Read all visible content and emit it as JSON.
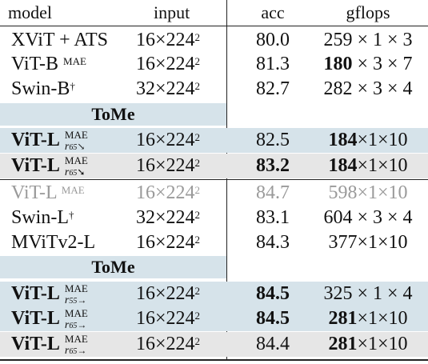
{
  "header": {
    "model": "model",
    "input": "input",
    "acc": "acc",
    "gflops": "gflops"
  },
  "section1": [
    {
      "model": "XViT + ATS",
      "input": "16×224",
      "input_exp": "2",
      "acc": "80.0",
      "gf_a": "259",
      "gf_rest": " × 1 × 3"
    },
    {
      "model": "ViT-B",
      "model_sup": "MAE",
      "input": "16×224",
      "input_exp": "2",
      "acc": "81.3",
      "gf_a": "180",
      "gf_rest": " × 3 × 7"
    },
    {
      "model": "Swin-B",
      "model_sup": "†",
      "input": "32×224",
      "input_exp": "2",
      "acc": "82.7",
      "gf_a": "282",
      "gf_rest": " × 3 × 4"
    }
  ],
  "tome_label_1": "ToMe",
  "tome1": [
    {
      "model": "ViT-L",
      "sup_top": "MAE",
      "sub_bot": "r",
      "sub_num": "65",
      "arrow": "↘",
      "input": "16×224",
      "input_exp": "2",
      "acc": "82.5",
      "gf_a": "184",
      "gf_rest": "×1×10"
    },
    {
      "model": "ViT-L",
      "sup_top": "MAE",
      "sub_bot": "r",
      "sub_num": "65",
      "arrow": "➘",
      "input": "16×224",
      "input_exp": "2",
      "acc": "83.2",
      "gf_a": "184",
      "gf_rest": "×1×10"
    }
  ],
  "section2": [
    {
      "model": "ViT-L",
      "model_sup": "MAE",
      "input": "16×224",
      "input_exp": "2",
      "acc": "84.7",
      "gf_a": "598",
      "gf_rest": "×1×10"
    },
    {
      "model": "Swin-L",
      "model_sup": "†",
      "input": "32×224",
      "input_exp": "2",
      "acc": "83.1",
      "gf_a": "604",
      "gf_rest": " × 3 × 4"
    },
    {
      "model": "MViTv2-L",
      "input": "16×224",
      "input_exp": "2",
      "acc": "84.3",
      "gf_a": "377",
      "gf_rest": "×1×10"
    }
  ],
  "tome_label_2": "ToMe",
  "tome2": [
    {
      "model": "ViT-L",
      "sup_top": "MAE",
      "sub_bot": "r",
      "sub_num": "55",
      "arrow": "→",
      "input": "16×224",
      "input_exp": "2",
      "acc": "84.5",
      "gf_a": "325",
      "gf_rest": " × 1 × 4"
    },
    {
      "model": "ViT-L",
      "sup_top": "MAE",
      "sub_bot": "r",
      "sub_num": "65",
      "arrow": "→",
      "input": "16×224",
      "input_exp": "2",
      "acc": "84.5",
      "gf_a": "281",
      "gf_rest": "×1×10"
    },
    {
      "model": "ViT-L",
      "sup_top": "MAE",
      "sub_bot": "r",
      "sub_num": "65",
      "arrow": "→",
      "input": "16×224",
      "input_exp": "2",
      "acc": "84.4",
      "gf_a": "281",
      "gf_rest": "×1×10"
    }
  ]
}
